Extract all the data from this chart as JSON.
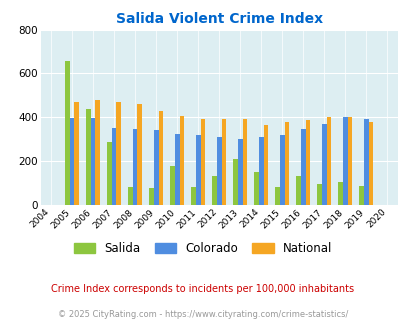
{
  "title": "Salida Violent Crime Index",
  "plot_years": [
    2005,
    2006,
    2007,
    2008,
    2009,
    2010,
    2011,
    2012,
    2013,
    2014,
    2015,
    2016,
    2017,
    2018,
    2019
  ],
  "salida": [
    655,
    435,
    285,
    80,
    75,
    175,
    80,
    130,
    210,
    150,
    80,
    130,
    95,
    105,
    85
  ],
  "colorado": [
    395,
    395,
    350,
    345,
    340,
    325,
    320,
    310,
    300,
    310,
    320,
    345,
    370,
    400,
    390
  ],
  "national": [
    470,
    480,
    470,
    460,
    430,
    405,
    390,
    390,
    390,
    365,
    380,
    385,
    400,
    400,
    380
  ],
  "all_xtick_years": [
    2004,
    2005,
    2006,
    2007,
    2008,
    2009,
    2010,
    2011,
    2012,
    2013,
    2014,
    2015,
    2016,
    2017,
    2018,
    2019,
    2020
  ],
  "salida_color": "#8dc63f",
  "colorado_color": "#4f8de0",
  "national_color": "#f5a623",
  "bg_color": "#ddeef2",
  "ylim": [
    0,
    800
  ],
  "yticks": [
    0,
    200,
    400,
    600,
    800
  ],
  "legend_labels": [
    "Salida",
    "Colorado",
    "National"
  ],
  "footnote1": "Crime Index corresponds to incidents per 100,000 inhabitants",
  "footnote2": "© 2025 CityRating.com - https://www.cityrating.com/crime-statistics/",
  "title_color": "#0066cc",
  "footnote1_color": "#cc0000",
  "footnote2_color": "#999999",
  "bar_width": 0.22
}
